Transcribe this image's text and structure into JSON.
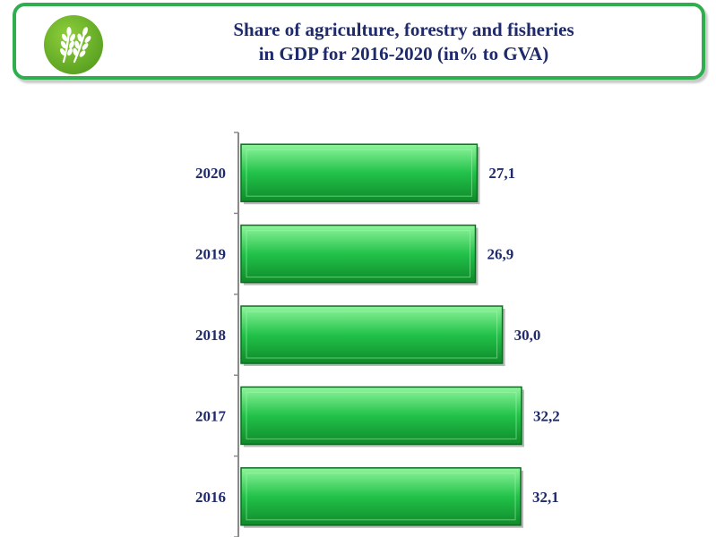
{
  "header": {
    "title_line1": "Share of agriculture, forestry and fisheries",
    "title_line2": "in GDP for 2016-2020 (in% to GVA)",
    "icon": "wheat-icon"
  },
  "colors": {
    "bar_fill": "#22c24a",
    "bar_light": "#7ff08e",
    "bar_dark": "#0f6b22",
    "text": "#1f2a6b",
    "border": "#2fae4e"
  },
  "chart_data": {
    "type": "bar",
    "orientation": "horizontal",
    "categories": [
      "2020",
      "2019",
      "2018",
      "2017",
      "2016"
    ],
    "values": [
      27.1,
      26.9,
      30.0,
      32.2,
      32.1
    ],
    "value_labels": [
      "27,1",
      "26,9",
      "30,0",
      "32,2",
      "32,1"
    ],
    "title": "Share of agriculture, forestry and fisheries in GDP for 2016-2020 (in% to GVA)",
    "xlabel": "",
    "ylabel": "",
    "xlim": [
      0,
      32.2
    ],
    "grid": false,
    "legend": "none"
  }
}
